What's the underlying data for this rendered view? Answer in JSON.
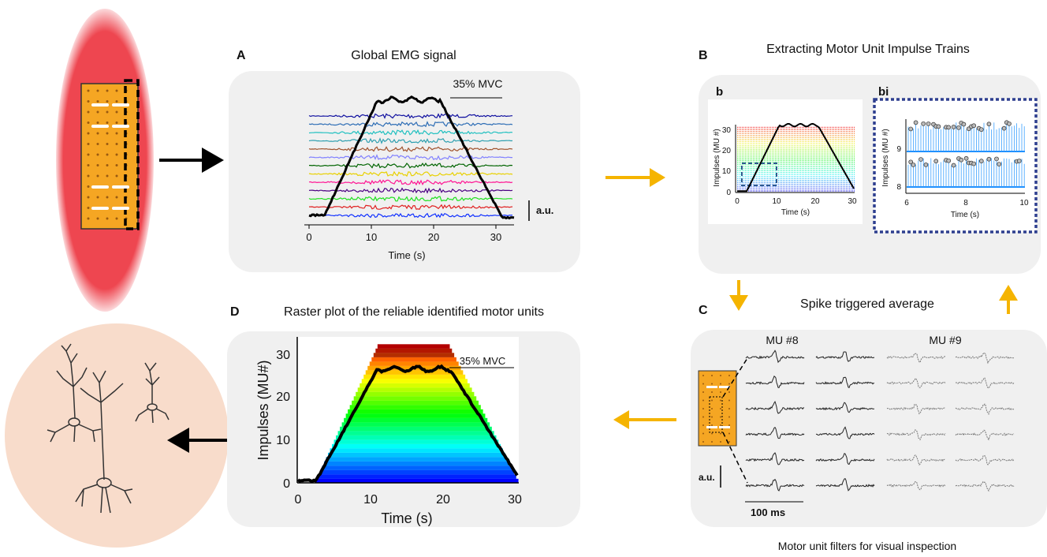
{
  "panel_a": {
    "letter": "A",
    "title": "Global EMG signal",
    "mvc_label": "35% MVC",
    "scale_label": "a.u.",
    "xlabel": "Time (s)",
    "xticks": [
      "0",
      "10",
      "20",
      "30"
    ]
  },
  "panel_b": {
    "letter": "B",
    "title": "Extracting Motor Unit Impulse Trains",
    "sub_b": {
      "letter": "b",
      "ylabel": "Impulses (MU #)",
      "xlabel": "Time (s)",
      "yticks": [
        "0",
        "10",
        "20",
        "30"
      ],
      "xticks": [
        "0",
        "10",
        "20",
        "30"
      ]
    },
    "sub_bi": {
      "letter": "bi",
      "ylabel": "Impulses (MU #)",
      "xlabel": "Time (s)",
      "yticks": [
        "9",
        "8"
      ],
      "xticks": [
        "6",
        "8",
        "10"
      ]
    }
  },
  "panel_c": {
    "letter": "C",
    "title": "Spike triggered average",
    "mu_labels": [
      "MU #8",
      "MU #9"
    ],
    "scale_label": "a.u.",
    "time_scale": "100 ms",
    "caption": "Motor unit filters for visual inspection"
  },
  "panel_d": {
    "letter": "D",
    "title": "Raster plot of the reliable identified motor units",
    "mvc_label": "35% MVC",
    "ylabel": "Impulses (MU#)",
    "xlabel": "Time (s)",
    "yticks": [
      "0",
      "10",
      "20",
      "30"
    ],
    "xticks": [
      "0",
      "10",
      "20",
      "30"
    ]
  },
  "colors": {
    "orange_arrow": "#f5b400",
    "panel_bg": "#f0f0f0",
    "electrode": "#f5a623",
    "muscle": "#ee4650",
    "neuron_bg": "#f8dccb",
    "dashed_box": "#2e3f8f"
  }
}
